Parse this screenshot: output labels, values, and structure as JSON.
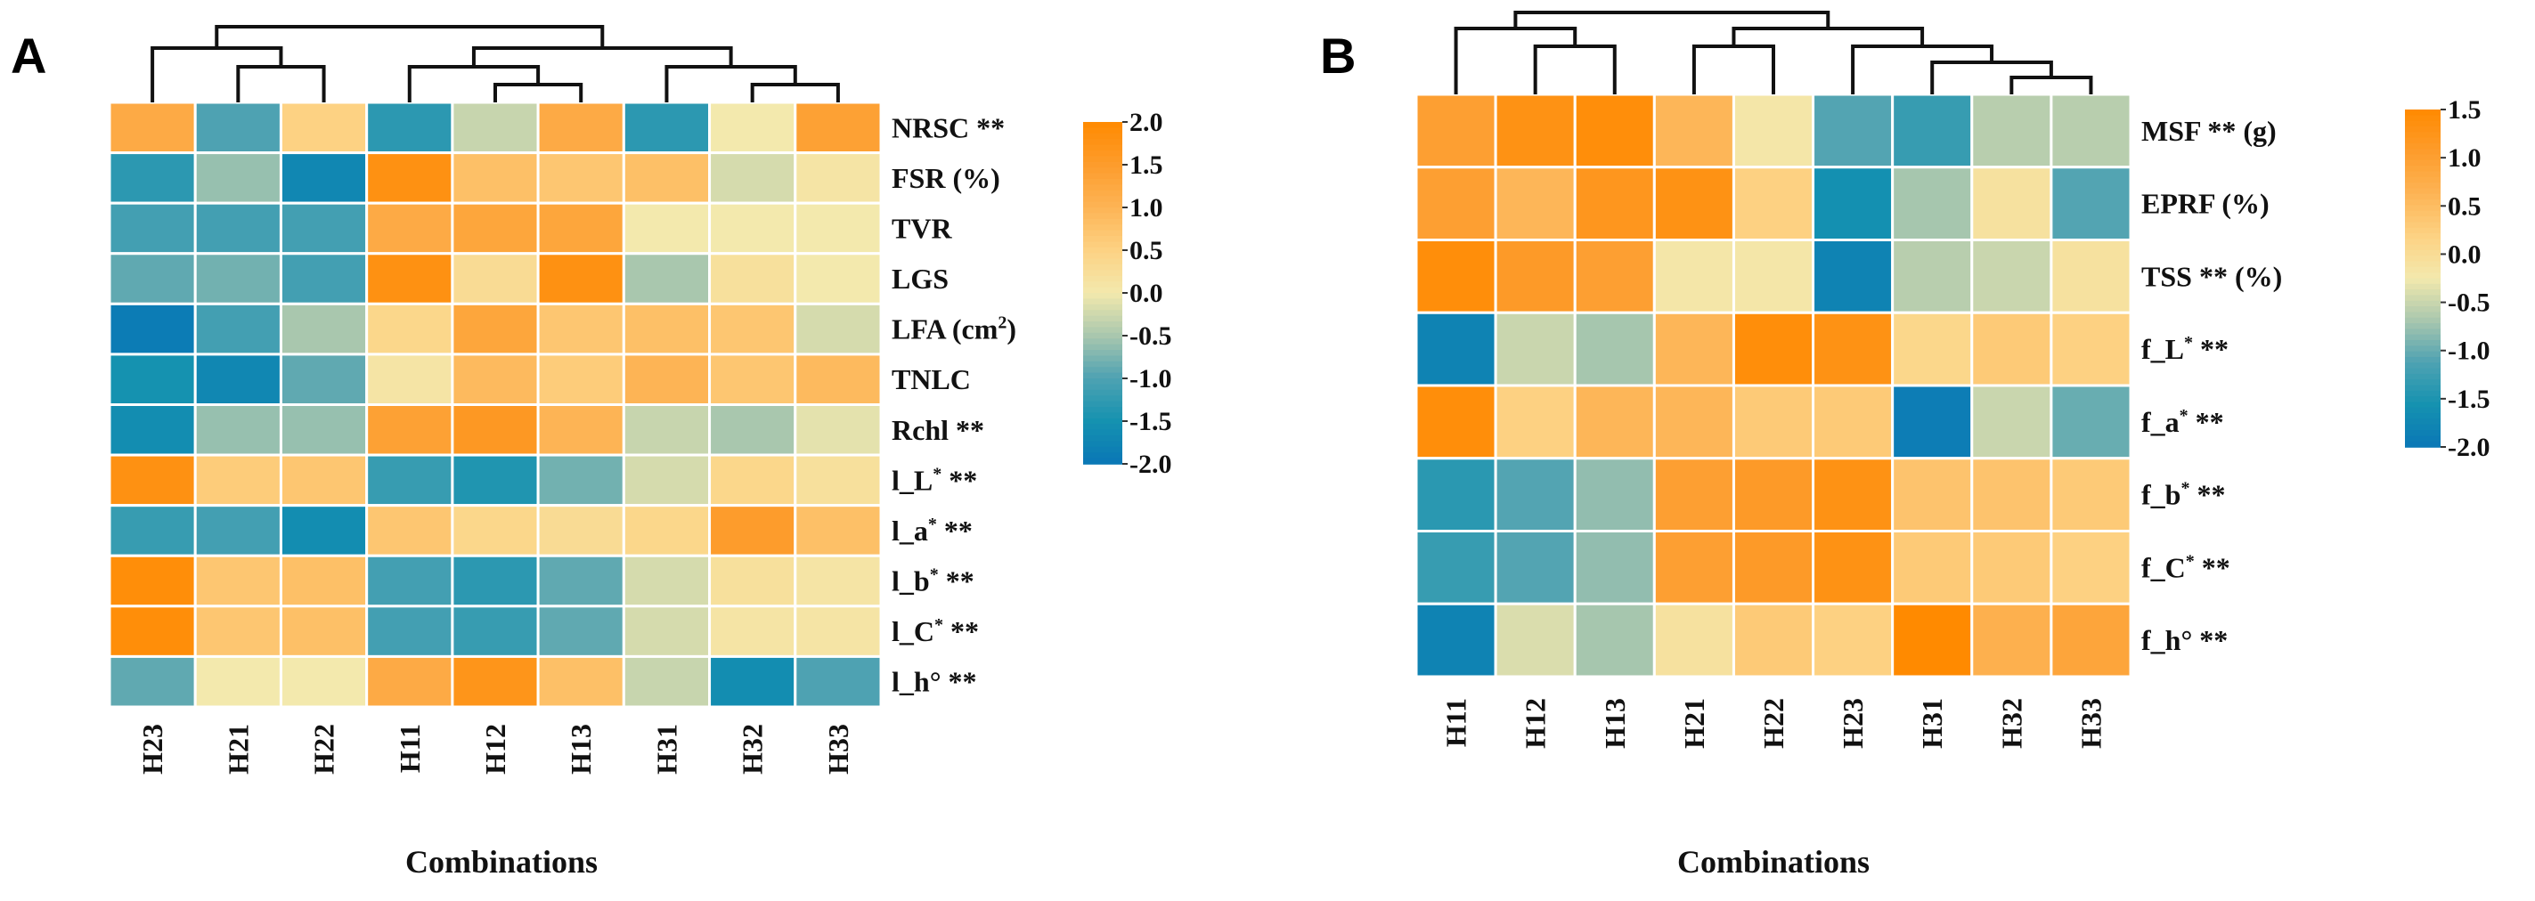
{
  "chart_data": [
    {
      "type": "heatmap",
      "panel_label": "A",
      "xlabel": "Combinations",
      "columns": [
        "H23",
        "H21",
        "H22",
        "H11",
        "H12",
        "H13",
        "H31",
        "H32",
        "H33"
      ],
      "rows": [
        {
          "base": "NRSC",
          "sup": "",
          "tail": " **"
        },
        {
          "base": "FSR (%)",
          "sup": "",
          "tail": ""
        },
        {
          "base": "TVR",
          "sup": "",
          "tail": ""
        },
        {
          "base": "LGS",
          "sup": "",
          "tail": ""
        },
        {
          "base": "LFA (cm",
          "sup": "2",
          "tail": ")"
        },
        {
          "base": "TNLC",
          "sup": "",
          "tail": ""
        },
        {
          "base": "Rchl",
          "sup": "",
          "tail": " **"
        },
        {
          "base": "l_L",
          "sup": "*",
          "tail": " **"
        },
        {
          "base": "l_a",
          "sup": "*",
          "tail": " **"
        },
        {
          "base": "l_b",
          "sup": "*",
          "tail": " **"
        },
        {
          "base": "l_C",
          "sup": "*",
          "tail": " **"
        },
        {
          "base": "l_h°",
          "sup": "",
          "tail": " **"
        }
      ],
      "values": [
        [
          1.2,
          -1.0,
          0.5,
          -1.3,
          -0.3,
          1.2,
          -1.3,
          0.0,
          1.4
        ],
        [
          -1.3,
          -0.6,
          -1.7,
          1.8,
          0.8,
          0.7,
          0.8,
          -0.2,
          0.1
        ],
        [
          -1.1,
          -1.1,
          -1.1,
          1.2,
          1.3,
          1.3,
          0.0,
          0.0,
          0.0
        ],
        [
          -0.9,
          -0.8,
          -1.1,
          1.8,
          0.3,
          1.8,
          -0.5,
          0.2,
          0.0
        ],
        [
          -1.9,
          -1.1,
          -0.5,
          0.4,
          1.3,
          0.7,
          0.8,
          0.7,
          -0.2
        ],
        [
          -1.5,
          -1.7,
          -0.9,
          0.1,
          0.9,
          0.6,
          1.0,
          0.7,
          0.9
        ],
        [
          -1.6,
          -0.6,
          -0.6,
          1.4,
          1.6,
          1.0,
          -0.3,
          -0.5,
          -0.1
        ],
        [
          1.8,
          0.6,
          0.7,
          -1.2,
          -1.4,
          -0.8,
          -0.2,
          0.4,
          0.2
        ],
        [
          -1.2,
          -1.1,
          -1.6,
          0.7,
          0.4,
          0.3,
          0.4,
          1.5,
          0.8
        ],
        [
          1.9,
          0.7,
          0.8,
          -1.1,
          -1.3,
          -0.9,
          -0.2,
          0.2,
          0.1
        ],
        [
          1.9,
          0.7,
          0.8,
          -1.1,
          -1.2,
          -0.9,
          -0.2,
          0.1,
          0.1
        ],
        [
          -0.9,
          0.0,
          0.0,
          1.2,
          1.7,
          0.8,
          -0.3,
          -1.6,
          -1.0
        ]
      ],
      "colorbar": {
        "range": [
          -2.0,
          2.0
        ],
        "ticks": [
          "2.0",
          "1.5",
          "1.0",
          "0.5",
          "0.0",
          "-0.5",
          "-1.0",
          "-1.5",
          "-2.0"
        ]
      },
      "dendrogram": "((H23,(H21,H22)),((H11,(H12,H13)),(H31,(H32,H33))))"
    },
    {
      "type": "heatmap",
      "panel_label": "B",
      "xlabel": "Combinations",
      "columns": [
        "H11",
        "H12",
        "H13",
        "H21",
        "H22",
        "H23",
        "H31",
        "H32",
        "H33"
      ],
      "rows": [
        {
          "base": "MSF ** (g)",
          "sup": "",
          "tail": ""
        },
        {
          "base": "EPRF (%)",
          "sup": "",
          "tail": ""
        },
        {
          "base": "TSS ** (%)",
          "sup": "",
          "tail": ""
        },
        {
          "base": "f_L",
          "sup": "*",
          "tail": " **"
        },
        {
          "base": "f_a",
          "sup": "*",
          "tail": " **"
        },
        {
          "base": "f_b",
          "sup": "*",
          "tail": " **"
        },
        {
          "base": "f_C",
          "sup": "*",
          "tail": " **"
        },
        {
          "base": "f_h°",
          "sup": "",
          "tail": " **"
        }
      ],
      "values": [
        [
          1.0,
          1.3,
          1.4,
          0.6,
          -0.2,
          -1.1,
          -1.3,
          -0.6,
          -0.6
        ],
        [
          1.0,
          0.6,
          1.2,
          1.3,
          0.2,
          -1.6,
          -0.7,
          -0.1,
          -1.1
        ],
        [
          1.4,
          1.1,
          1.0,
          -0.2,
          -0.2,
          -1.8,
          -0.6,
          -0.5,
          -0.1
        ],
        [
          -1.8,
          -0.5,
          -0.7,
          0.6,
          1.4,
          1.3,
          0.1,
          0.3,
          0.2
        ],
        [
          1.4,
          0.2,
          0.6,
          0.6,
          0.3,
          0.3,
          -1.9,
          -0.5,
          -1.0
        ],
        [
          -1.4,
          -1.1,
          -0.8,
          1.0,
          1.1,
          1.3,
          0.4,
          0.4,
          0.3
        ],
        [
          -1.3,
          -1.1,
          -0.8,
          1.0,
          1.1,
          1.3,
          0.3,
          0.3,
          0.2
        ],
        [
          -1.8,
          -0.4,
          -0.7,
          -0.1,
          0.3,
          0.2,
          1.5,
          0.7,
          0.9
        ]
      ],
      "colorbar": {
        "range": [
          -2.0,
          1.5
        ],
        "ticks": [
          "1.5",
          "1.0",
          "0.5",
          "0.0",
          "-0.5",
          "-1.0",
          "-1.5",
          "-2.0"
        ]
      },
      "dendrogram": "((H11,(H12,H13)),((H21,H22),(H23,(H31,(H32,H33)))))"
    }
  ],
  "colormap": [
    "#0a77b6",
    "#1592b0",
    "#4ea2b2",
    "#a9c7ae",
    "#f3e9ad",
    "#fdd283",
    "#fdb455",
    "#fd9c2c",
    "#ff8a00"
  ]
}
